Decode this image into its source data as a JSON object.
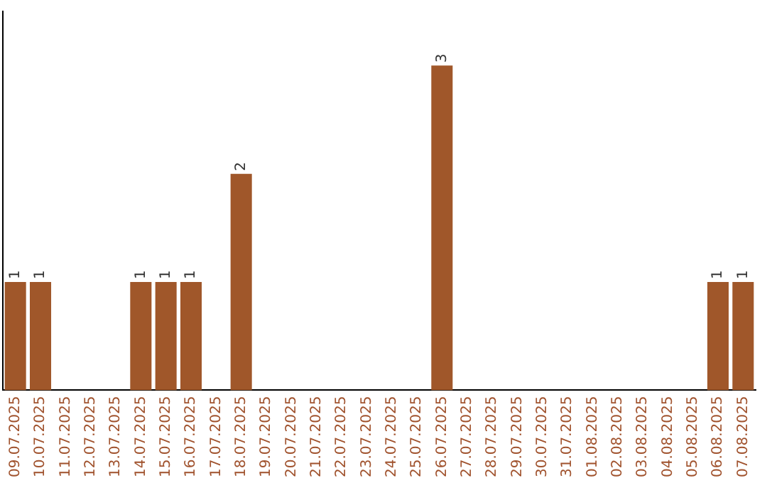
{
  "chart_data": {
    "type": "bar",
    "categories": [
      "09.07.2025",
      "10.07.2025",
      "11.07.2025",
      "12.07.2025",
      "13.07.2025",
      "14.07.2025",
      "15.07.2025",
      "16.07.2025",
      "17.07.2025",
      "18.07.2025",
      "19.07.2025",
      "20.07.2025",
      "21.07.2025",
      "22.07.2025",
      "23.07.2025",
      "24.07.2025",
      "25.07.2025",
      "26.07.2025",
      "27.07.2025",
      "28.07.2025",
      "29.07.2025",
      "30.07.2025",
      "31.07.2025",
      "01.08.2025",
      "02.08.2025",
      "03.08.2025",
      "04.08.2025",
      "05.08.2025",
      "06.08.2025",
      "07.08.2025"
    ],
    "values": [
      1,
      1,
      0,
      0,
      0,
      1,
      1,
      1,
      0,
      2,
      0,
      0,
      0,
      0,
      0,
      0,
      0,
      3,
      0,
      0,
      0,
      0,
      0,
      0,
      0,
      0,
      0,
      0,
      1,
      1
    ],
    "value_labels": [
      "1",
      "1",
      null,
      null,
      null,
      "1",
      "1",
      "1",
      null,
      "2",
      null,
      null,
      null,
      null,
      null,
      null,
      null,
      "3",
      null,
      null,
      null,
      null,
      null,
      null,
      null,
      null,
      null,
      null,
      "1",
      "1"
    ],
    "color": "#a0572a",
    "tick_labels": "x",
    "grid": false,
    "legend": false
  }
}
